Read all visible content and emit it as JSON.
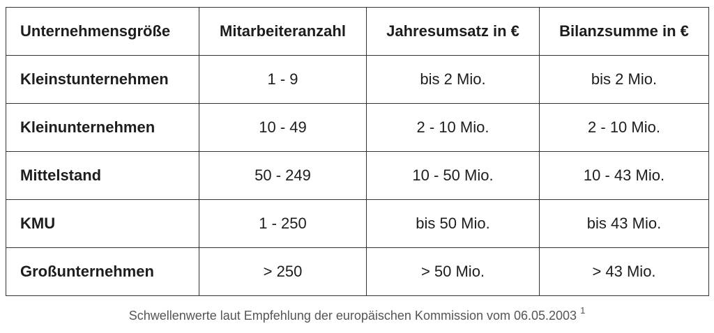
{
  "table": {
    "header": [
      "Unternehmensgröße",
      "Mitarbeiteranzahl",
      "Jahresumsatz in €",
      "Bilanzsumme in €"
    ],
    "rows": [
      [
        "Kleinstunternehmen",
        "1 - 9",
        "bis 2 Mio.",
        "bis 2 Mio."
      ],
      [
        "Kleinunternehmen",
        "10 - 49",
        "2 - 10 Mio.",
        "2 - 10 Mio."
      ],
      [
        "Mittelstand",
        "50 - 249",
        "10 - 50 Mio.",
        "10 - 43 Mio."
      ],
      [
        "KMU",
        "1 - 250",
        "bis 50 Mio.",
        "bis 43 Mio."
      ],
      [
        "Großunternehmen",
        "> 250",
        "> 50 Mio.",
        "> 43 Mio."
      ]
    ]
  },
  "caption": {
    "text": "Schwellenwerte laut Empfehlung der europäischen Kommission vom 06.05.2003",
    "footnote": "1"
  }
}
